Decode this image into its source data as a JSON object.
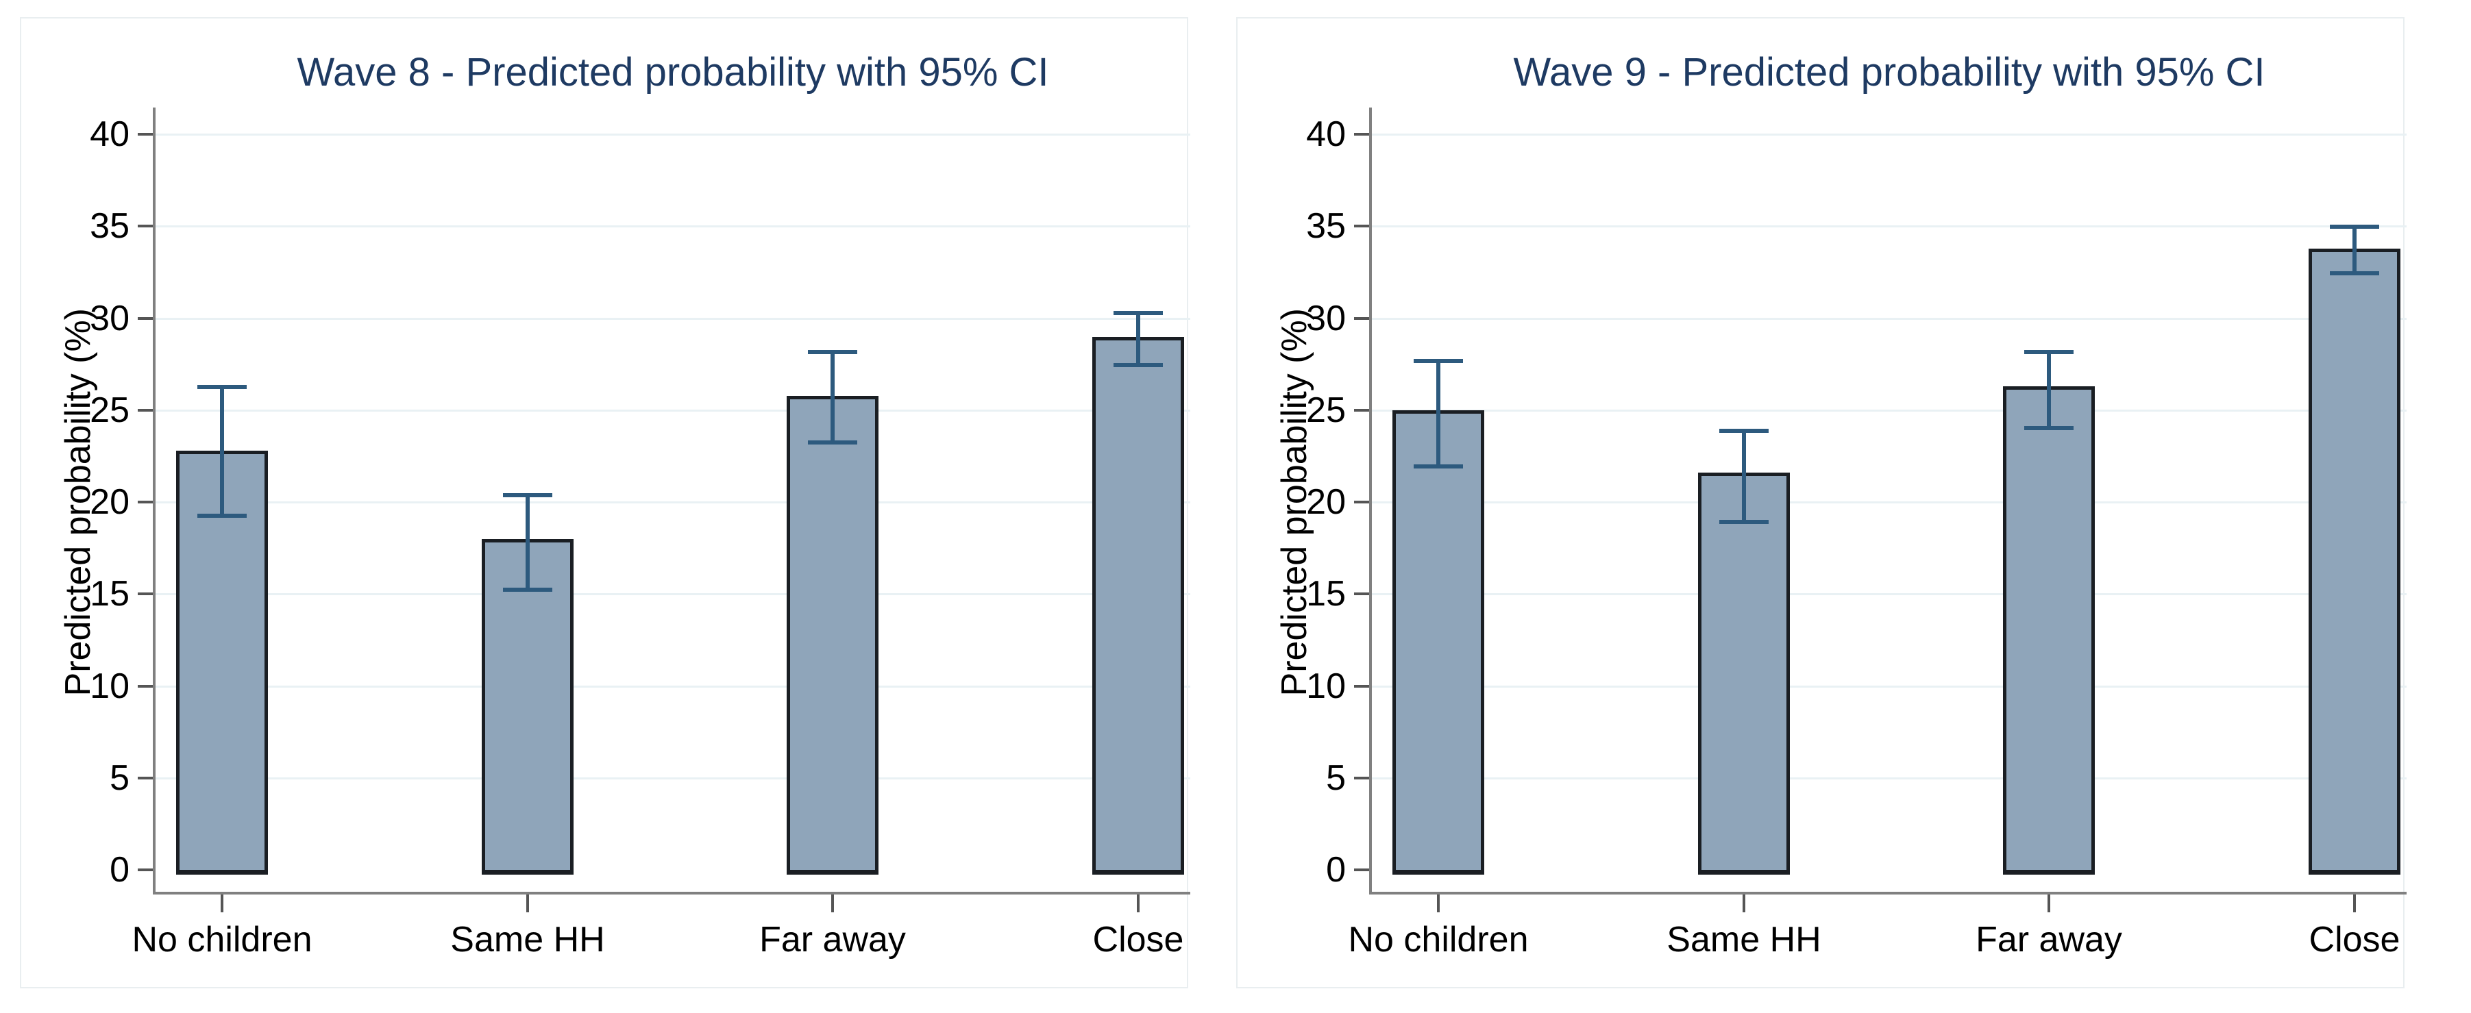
{
  "style": {
    "background": "#ffffff",
    "panel_border": "#e9eef0",
    "title_color": "#1e3a62",
    "bar_fill": "#8fa5ba",
    "bar_border": "#1a1e23",
    "error_color": "#2d5a7e",
    "grid_color": "#e9f1f4",
    "axis_color": "#808080",
    "tick_color": "#555555",
    "text_color": "#000000"
  },
  "chart_data": [
    {
      "type": "bar",
      "title": "Wave 8 - Predicted probability with 95% CI",
      "ylabel": "Predicted probability (%)",
      "xlabel": "",
      "categories": [
        "No children",
        "Same HH",
        "Far away",
        "Close"
      ],
      "values": [
        22.6,
        17.8,
        25.6,
        28.8
      ],
      "ci_low": [
        19.2,
        15.2,
        23.2,
        27.4
      ],
      "ci_high": [
        26.3,
        20.4,
        28.2,
        30.3
      ],
      "ylim": [
        0,
        40
      ],
      "yticks": [
        "0",
        "5",
        "10",
        "15",
        "20",
        "25",
        "30",
        "35",
        "40"
      ],
      "grid": true,
      "legend": "none"
    },
    {
      "type": "bar",
      "title": "Wave 9 - Predicted probability with 95% CI",
      "ylabel": "Predicted probability (%)",
      "xlabel": "",
      "categories": [
        "No children",
        "Same HH",
        "Far away",
        "Close"
      ],
      "values": [
        24.8,
        21.4,
        26.1,
        33.6
      ],
      "ci_low": [
        21.9,
        18.9,
        24.0,
        32.4
      ],
      "ci_high": [
        27.7,
        23.9,
        28.2,
        35.0
      ],
      "ylim": [
        0,
        40
      ],
      "yticks": [
        "0",
        "5",
        "10",
        "15",
        "20",
        "25",
        "30",
        "35",
        "40"
      ],
      "grid": true,
      "legend": "none"
    }
  ]
}
